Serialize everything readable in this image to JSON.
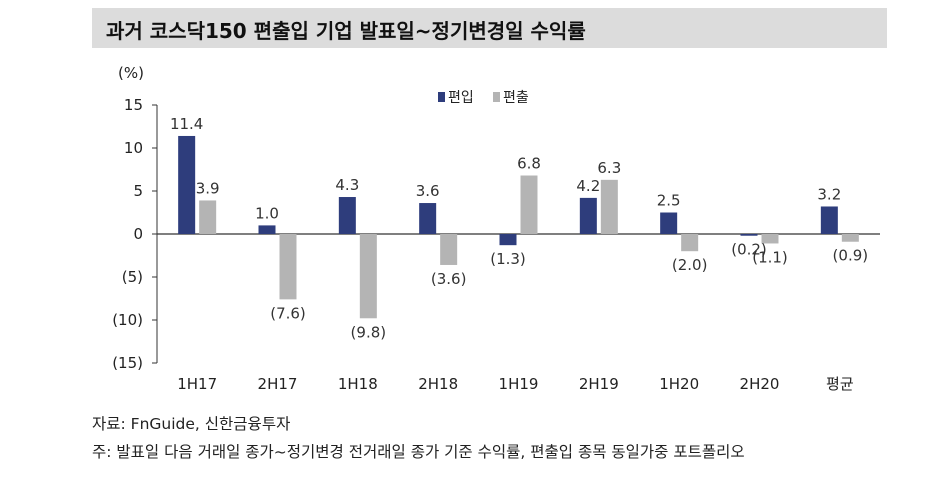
{
  "title": "과거 코스닥150 편출입 기업 발표일~정기변경일 수익률",
  "chart_data": {
    "type": "bar",
    "unit_label": "(%)",
    "categories": [
      "1H17",
      "2H17",
      "1H18",
      "2H18",
      "1H19",
      "2H19",
      "1H20",
      "2H20",
      "평균"
    ],
    "series": [
      {
        "name": "편입",
        "values": [
          11.4,
          1.0,
          4.3,
          3.6,
          -1.3,
          4.2,
          2.5,
          -0.2,
          3.2
        ]
      },
      {
        "name": "편출",
        "values": [
          3.9,
          -7.6,
          -9.8,
          -3.6,
          6.8,
          6.3,
          -2.0,
          -1.1,
          -0.9
        ]
      }
    ],
    "data_labels": [
      [
        "11.4",
        "1.0",
        "4.3",
        "3.6",
        "(1.3)",
        "4.2",
        "2.5",
        "(0.2)",
        "3.2"
      ],
      [
        "3.9",
        "(7.6)",
        "(9.8)",
        "(3.6)",
        "6.8",
        "6.3",
        "(2.0)",
        "(1.1)",
        "(0.9)"
      ]
    ],
    "yticks": [
      15,
      10,
      5,
      0,
      -5,
      -10,
      -15
    ],
    "ytick_labels": [
      "15",
      "10",
      "5",
      "0",
      "(5)",
      "(10)",
      "(15)"
    ],
    "ylim": [
      -15,
      15
    ],
    "grid": false,
    "legend_position": "top-center",
    "colors": {
      "편입": "#2e3d7c",
      "편출": "#b4b4b4"
    }
  },
  "notes": {
    "source": "자료: FnGuide, 신한금융투자",
    "footnote": "주: 발표일 다음 거래일 종가~정기변경 전거래일 종가 기준 수익률, 편출입 종목 동일가중 포트폴리오"
  }
}
